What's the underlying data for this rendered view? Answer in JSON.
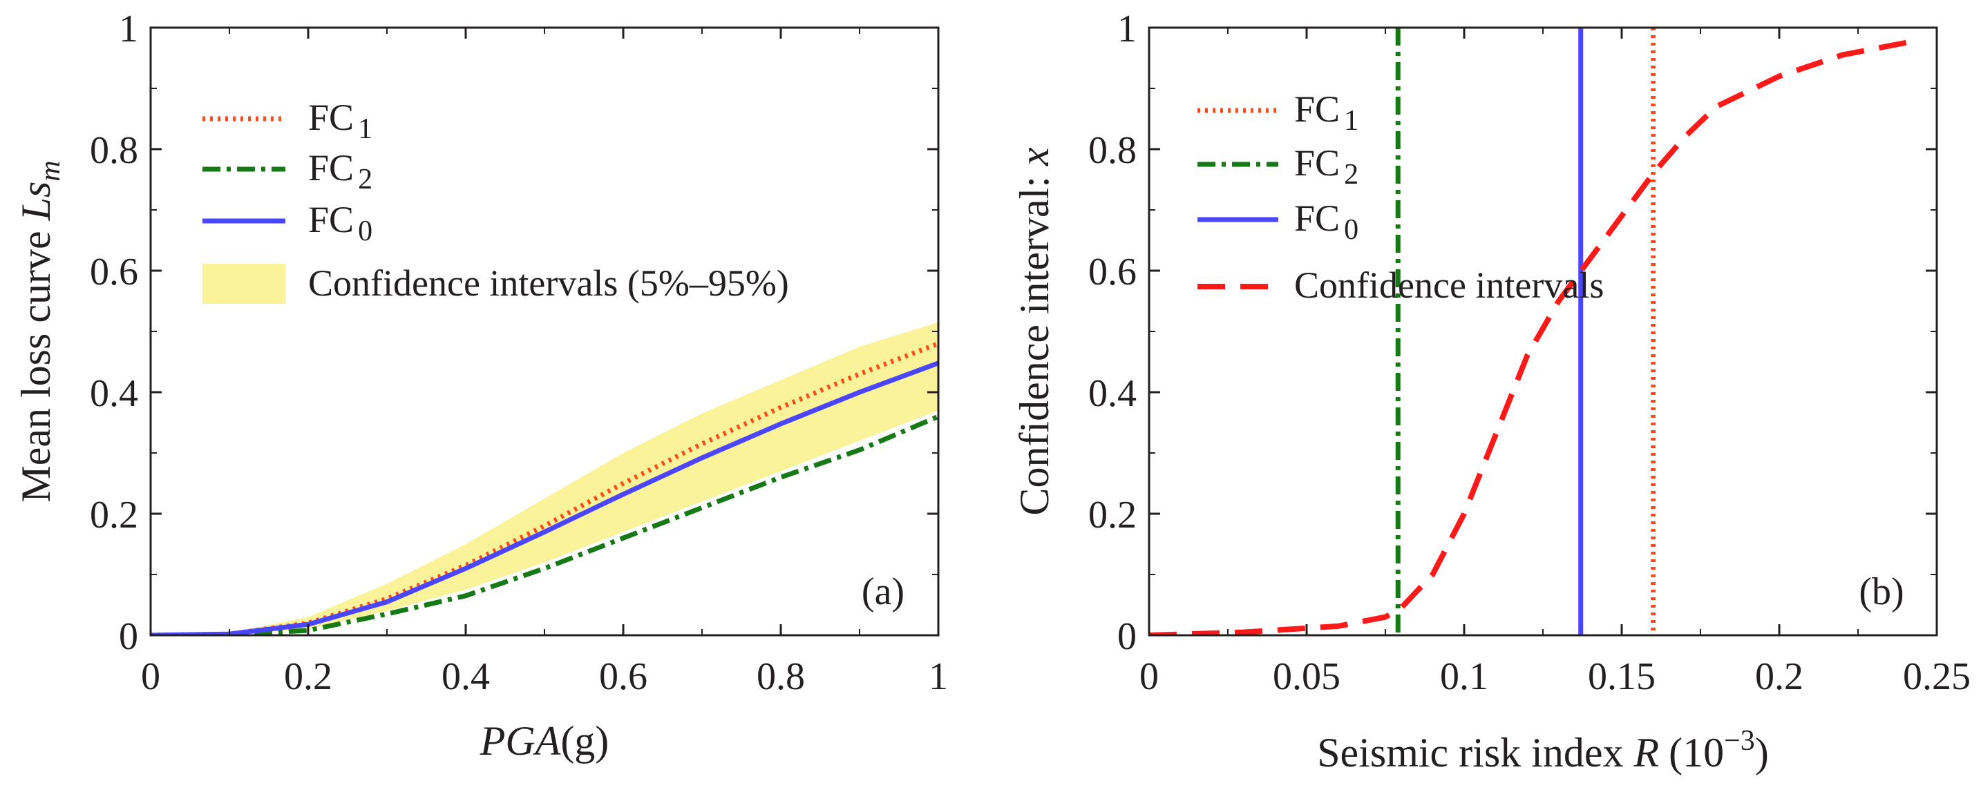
{
  "chart_data": [
    {
      "type": "line",
      "panel_label": "(a)",
      "xlabel": "PGA",
      "xlabel_unit": "(g)",
      "ylabel": "Mean loss curve ",
      "ylabel_symbol": "Ls",
      "ylabel_subscript": "m",
      "xlim": [
        0,
        1
      ],
      "ylim": [
        0,
        1
      ],
      "x_ticks": [
        "0",
        "0.2",
        "0.4",
        "0.6",
        "0.8",
        "1"
      ],
      "x_tick_values": [
        0,
        0.2,
        0.4,
        0.6,
        0.8,
        1
      ],
      "y_ticks": [
        "0",
        "0.2",
        "0.4",
        "0.6",
        "0.8",
        "1"
      ],
      "y_tick_values": [
        0,
        0.2,
        0.4,
        0.6,
        0.8,
        1
      ],
      "grid": false,
      "legend_position": "top-left",
      "series": [
        {
          "name": "FC",
          "subscript": "1",
          "style": "dotted",
          "color": "#ff4a1c",
          "x": [
            0,
            0.1,
            0.2,
            0.3,
            0.4,
            0.5,
            0.6,
            0.7,
            0.8,
            0.9,
            1.0
          ],
          "y": [
            0,
            0.002,
            0.02,
            0.06,
            0.115,
            0.18,
            0.25,
            0.315,
            0.375,
            0.43,
            0.48
          ]
        },
        {
          "name": "FC",
          "subscript": "2",
          "style": "dashdot",
          "color": "#157a15",
          "x": [
            0,
            0.1,
            0.2,
            0.3,
            0.4,
            0.5,
            0.6,
            0.7,
            0.8,
            0.9,
            1.0
          ],
          "y": [
            0,
            0.001,
            0.008,
            0.035,
            0.065,
            0.11,
            0.16,
            0.21,
            0.26,
            0.305,
            0.36
          ]
        },
        {
          "name": "FC",
          "subscript": "0",
          "style": "solid",
          "color": "#4a45ff",
          "x": [
            0,
            0.1,
            0.2,
            0.3,
            0.4,
            0.5,
            0.6,
            0.7,
            0.8,
            0.9,
            1.0
          ],
          "y": [
            0,
            0.002,
            0.018,
            0.055,
            0.11,
            0.17,
            0.232,
            0.292,
            0.348,
            0.4,
            0.448
          ]
        }
      ],
      "band": {
        "name": "Confidence intervals (5%–95%)",
        "color": "#fbf39a",
        "x": [
          0,
          0.1,
          0.2,
          0.3,
          0.4,
          0.5,
          0.6,
          0.7,
          0.8,
          0.9,
          1.0
        ],
        "lower": [
          0,
          0.001,
          0.01,
          0.04,
          0.075,
          0.12,
          0.17,
          0.22,
          0.27,
          0.32,
          0.37
        ],
        "upper": [
          0,
          0.004,
          0.03,
          0.085,
          0.15,
          0.225,
          0.3,
          0.365,
          0.42,
          0.475,
          0.515
        ]
      }
    },
    {
      "type": "line",
      "panel_label": "(b)",
      "xlabel": "Seismic risk index ",
      "xlabel_symbol": "R",
      "xlabel_unit": "(10",
      "xlabel_exp": "−3",
      "xlabel_close": ")",
      "ylabel": "Confidence interval: ",
      "ylabel_symbol": "x",
      "xlim": [
        0,
        0.25
      ],
      "ylim": [
        0,
        1
      ],
      "x_ticks": [
        "0",
        "0.05",
        "0.1",
        "0.15",
        "0.2",
        "0.25"
      ],
      "x_tick_values": [
        0,
        0.05,
        0.1,
        0.15,
        0.2,
        0.25
      ],
      "y_ticks": [
        "0",
        "0.2",
        "0.4",
        "0.6",
        "0.8",
        "1"
      ],
      "y_tick_values": [
        0,
        0.2,
        0.4,
        0.6,
        0.8,
        1
      ],
      "grid": false,
      "legend_position": "top-left",
      "vertical_lines": [
        {
          "name": "FC",
          "subscript": "1",
          "style": "dotted",
          "color": "#ff4a1c",
          "x": 0.16
        },
        {
          "name": "FC",
          "subscript": "2",
          "style": "dashdot",
          "color": "#157a15",
          "x": 0.079
        },
        {
          "name": "FC",
          "subscript": "0",
          "style": "solid",
          "color": "#4a45ff",
          "x": 0.137
        }
      ],
      "series": [
        {
          "name": "Confidence intervals",
          "style": "dashed",
          "color": "#ff1a1a",
          "x": [
            0,
            0.03,
            0.06,
            0.075,
            0.08,
            0.09,
            0.1,
            0.11,
            0.12,
            0.13,
            0.14,
            0.15,
            0.16,
            0.17,
            0.18,
            0.2,
            0.22,
            0.245
          ],
          "y": [
            0,
            0.005,
            0.015,
            0.03,
            0.045,
            0.1,
            0.2,
            0.33,
            0.46,
            0.55,
            0.62,
            0.69,
            0.76,
            0.82,
            0.87,
            0.92,
            0.955,
            0.98
          ]
        }
      ]
    }
  ]
}
